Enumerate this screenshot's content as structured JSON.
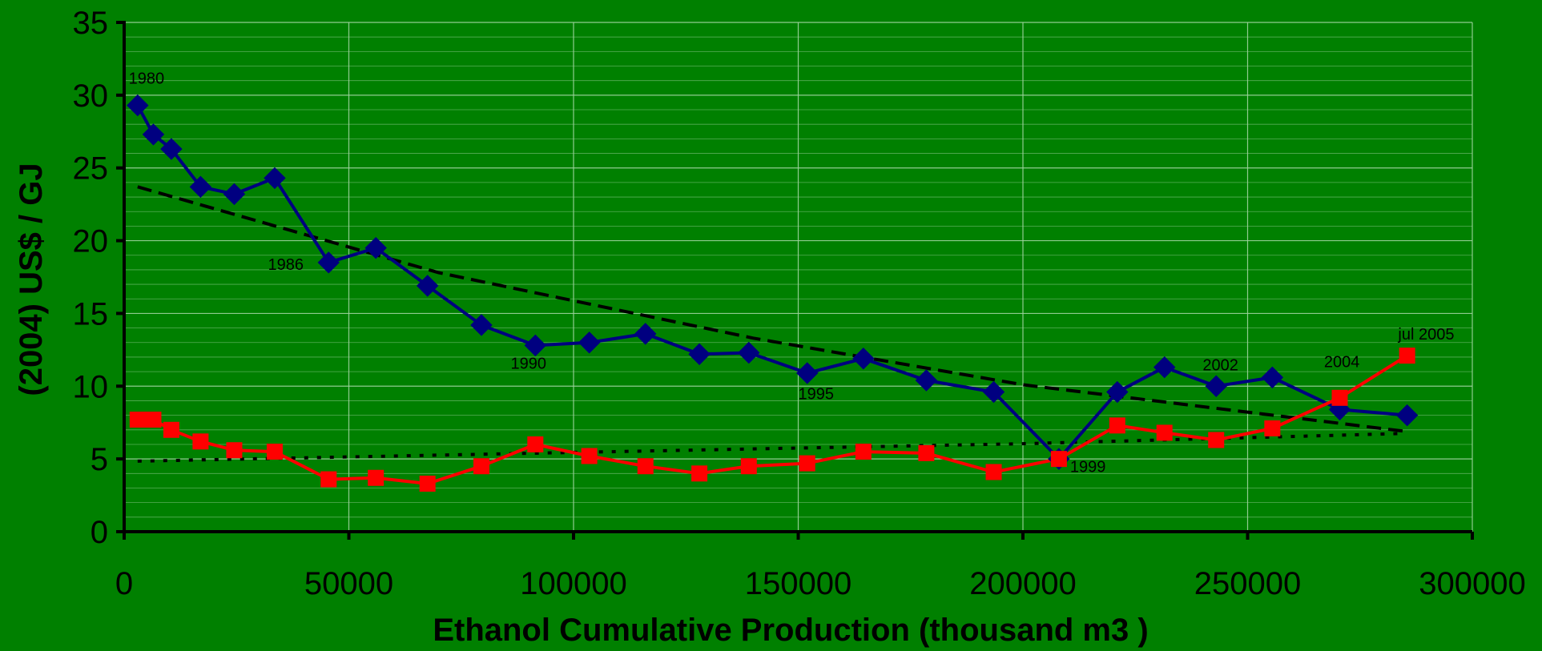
{
  "chart_data": {
    "type": "line",
    "title": "",
    "xlabel": "Ethanol Cumulative Production (thousand m3 )",
    "ylabel": "(2004) US$ / GJ",
    "xlim": [
      0,
      300000
    ],
    "ylim": [
      0,
      35
    ],
    "x_ticks": [
      0,
      50000,
      100000,
      150000,
      200000,
      250000,
      300000
    ],
    "y_ticks": [
      0,
      5,
      10,
      15,
      20,
      25,
      30,
      35
    ],
    "grid": true,
    "legend": "none",
    "series": [
      {
        "color": "#000080",
        "marker": "diamond",
        "points": [
          [
            3000,
            29.3
          ],
          [
            6500,
            27.3
          ],
          [
            10500,
            26.3
          ],
          [
            17000,
            23.7
          ],
          [
            24500,
            23.2
          ],
          [
            33500,
            24.3
          ],
          [
            45500,
            18.5
          ],
          [
            56000,
            19.5
          ],
          [
            67500,
            16.9
          ],
          [
            79500,
            14.2
          ],
          [
            91500,
            12.8
          ],
          [
            103500,
            13.0
          ],
          [
            116000,
            13.6
          ],
          [
            128000,
            12.2
          ],
          [
            139000,
            12.3
          ],
          [
            152000,
            10.9
          ],
          [
            164500,
            11.9
          ],
          [
            178500,
            10.4
          ],
          [
            193500,
            9.6
          ],
          [
            208000,
            5.0
          ],
          [
            221000,
            9.6
          ],
          [
            231500,
            11.3
          ],
          [
            243000,
            10.0
          ],
          [
            255500,
            10.6
          ],
          [
            270500,
            8.4
          ],
          [
            285500,
            8.0
          ]
        ]
      },
      {
        "color": "#FF0000",
        "marker": "square",
        "points": [
          [
            3000,
            7.7
          ],
          [
            6500,
            7.7
          ],
          [
            10500,
            7.0
          ],
          [
            17000,
            6.2
          ],
          [
            24500,
            5.6
          ],
          [
            33500,
            5.5
          ],
          [
            45500,
            3.6
          ],
          [
            56000,
            3.7
          ],
          [
            67500,
            3.3
          ],
          [
            79500,
            4.5
          ],
          [
            91500,
            6.0
          ],
          [
            103500,
            5.2
          ],
          [
            116000,
            4.5
          ],
          [
            128000,
            4.0
          ],
          [
            139000,
            4.5
          ],
          [
            152000,
            4.7
          ],
          [
            164500,
            5.5
          ],
          [
            178500,
            5.4
          ],
          [
            193500,
            4.1
          ],
          [
            208000,
            5.0
          ],
          [
            221000,
            7.3
          ],
          [
            231500,
            6.8
          ],
          [
            243000,
            6.3
          ],
          [
            255500,
            7.1
          ],
          [
            270500,
            9.2
          ],
          [
            285500,
            12.1
          ]
        ]
      },
      {
        "color": "#000000",
        "style": "dashed",
        "points": [
          [
            3000,
            23.7
          ],
          [
            70000,
            17.8
          ],
          [
            140000,
            13.3
          ],
          [
            200000,
            10.1
          ],
          [
            285000,
            6.9
          ]
        ]
      },
      {
        "color": "#000000",
        "style": "dotted",
        "points": [
          [
            3000,
            4.85
          ],
          [
            100000,
            5.45
          ],
          [
            200000,
            6.05
          ],
          [
            285000,
            6.75
          ]
        ]
      }
    ],
    "annotations": [
      {
        "text": "1980",
        "x": 1000,
        "y": 30.8
      },
      {
        "text": "1986",
        "x": 32000,
        "y": 18.0
      },
      {
        "text": "1990",
        "x": 86000,
        "y": 11.2
      },
      {
        "text": "1995",
        "x": 150000,
        "y": 9.1
      },
      {
        "text": "1999",
        "x": 210500,
        "y": 4.1
      },
      {
        "text": "2002",
        "x": 240000,
        "y": 11.1
      },
      {
        "text": "2004",
        "x": 267000,
        "y": 11.3
      },
      {
        "text": "jul 2005",
        "x": 283500,
        "y": 13.2
      }
    ]
  }
}
